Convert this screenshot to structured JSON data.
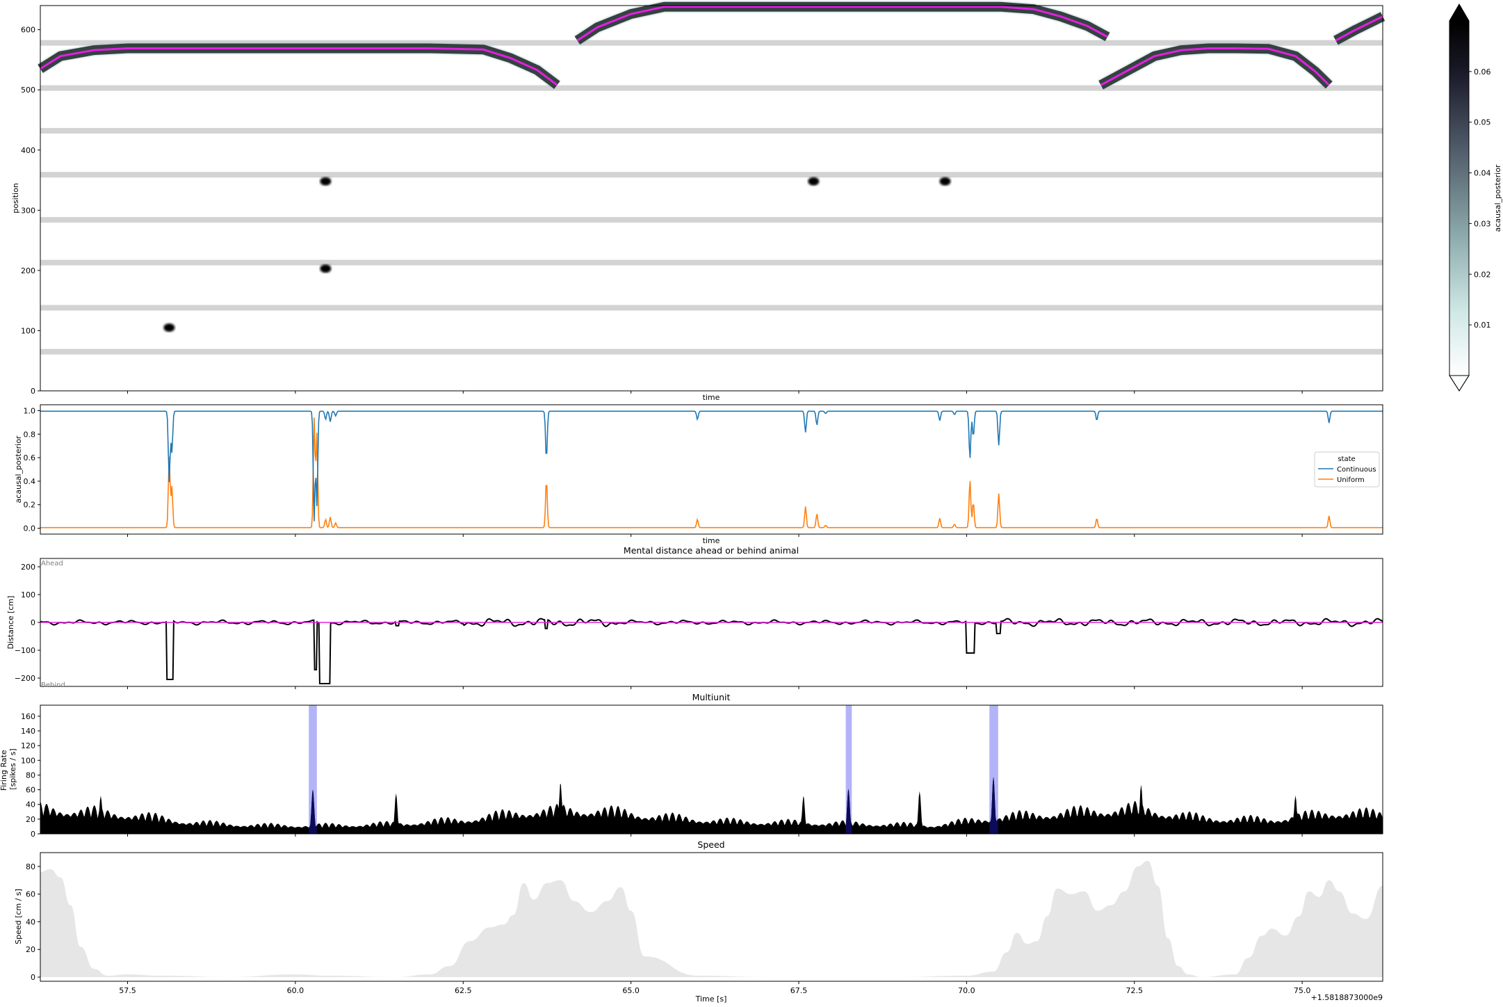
{
  "colors": {
    "continuous": "#1f77b4",
    "uniform": "#ff7f0e",
    "actual_position": "#e020e0",
    "ripple_band": "#b3b3f7",
    "multiunit_fill": "#000000",
    "multiunit_ripple_fill": "#0b0b5a",
    "speed_fill": "#e6e6e6",
    "track_gap": "#d3d3d3"
  },
  "chart_data": [
    {
      "type": "heatmap",
      "name": "posterior",
      "xlabel": "time",
      "ylabel": "position",
      "xlim": [
        56.2,
        76.2
      ],
      "ylim": [
        0,
        640
      ],
      "yticks": [
        "0",
        "100",
        "200",
        "300",
        "400",
        "500",
        "600"
      ],
      "track_gaps": [
        65,
        138,
        213,
        284,
        359,
        432,
        503,
        578
      ],
      "actual_position": {
        "x": [
          56.2,
          56.5,
          57.0,
          57.5,
          58.0,
          59.0,
          60.0,
          61.0,
          62.0,
          62.8,
          63.2,
          63.6,
          63.9
        ],
        "y": [
          535,
          556,
          566,
          569,
          569,
          569,
          569,
          569,
          569,
          567,
          553,
          533,
          508
        ]
      },
      "actual_position_2": {
        "x": [
          64.2,
          64.5,
          65.0,
          65.5,
          66.0,
          67.0,
          68.0,
          69.0,
          70.0,
          70.5,
          71.0,
          71.4,
          71.8,
          72.1
        ],
        "y": [
          582,
          604,
          626,
          638,
          638,
          638,
          638,
          638,
          638,
          638,
          634,
          622,
          606,
          588
        ]
      },
      "actual_position_3": {
        "x": [
          72.0,
          72.4,
          72.8,
          73.2,
          73.6,
          74.0,
          74.5,
          74.9,
          75.2,
          75.4
        ],
        "y": [
          508,
          532,
          556,
          566,
          569,
          569,
          568,
          556,
          530,
          508
        ]
      },
      "actual_position_4": {
        "x": [
          75.5,
          75.8,
          76.2
        ],
        "y": [
          582,
          600,
          622
        ]
      },
      "blobs": [
        {
          "x": 58.12,
          "y": 105
        },
        {
          "x": 60.45,
          "y": 348
        },
        {
          "x": 60.45,
          "y": 203
        },
        {
          "x": 67.72,
          "y": 348
        },
        {
          "x": 69.68,
          "y": 348
        }
      ],
      "colorbar": {
        "label": "acausal_posterior",
        "ticks": [
          "0.01",
          "0.02",
          "0.03",
          "0.04",
          "0.05",
          "0.06"
        ],
        "range": [
          0,
          0.07
        ]
      }
    },
    {
      "type": "line",
      "name": "state_probability",
      "xlabel": "time",
      "ylabel": "acausal_posterior",
      "xlim": [
        56.2,
        76.2
      ],
      "ylim": [
        -0.05,
        1.05
      ],
      "yticks": [
        "0.0",
        "0.2",
        "0.4",
        "0.6",
        "0.8",
        "1.0"
      ],
      "legend": {
        "title": "state",
        "placement": "right"
      },
      "dips": [
        {
          "x": 58.12,
          "depth": 0.6
        },
        {
          "x": 58.16,
          "depth": 0.35
        },
        {
          "x": 60.28,
          "depth": 0.93
        },
        {
          "x": 60.32,
          "depth": 0.8
        },
        {
          "x": 60.45,
          "depth": 0.07
        },
        {
          "x": 60.52,
          "depth": 0.09
        },
        {
          "x": 60.6,
          "depth": 0.04
        },
        {
          "x": 63.74,
          "depth": 0.41
        },
        {
          "x": 65.99,
          "depth": 0.07
        },
        {
          "x": 67.6,
          "depth": 0.18
        },
        {
          "x": 67.77,
          "depth": 0.12
        },
        {
          "x": 67.9,
          "depth": 0.02
        },
        {
          "x": 69.6,
          "depth": 0.08
        },
        {
          "x": 69.82,
          "depth": 0.03
        },
        {
          "x": 70.05,
          "depth": 0.41
        },
        {
          "x": 70.1,
          "depth": 0.22
        },
        {
          "x": 70.48,
          "depth": 0.29
        },
        {
          "x": 71.94,
          "depth": 0.08
        },
        {
          "x": 75.4,
          "depth": 0.1
        }
      ],
      "series": [
        {
          "name": "Continuous"
        },
        {
          "name": "Uniform"
        }
      ]
    },
    {
      "type": "line",
      "name": "mental_distance",
      "title": "Mental distance ahead or behind animal",
      "ylabel": "Distance [cm]",
      "xlim": [
        56.2,
        76.2
      ],
      "ylim": [
        -230,
        230
      ],
      "yticks": [
        "−200",
        "−100",
        "0",
        "100",
        "200"
      ],
      "annotations": {
        "ahead": "Ahead",
        "behind": "Behind"
      },
      "events": [
        {
          "x0": 58.08,
          "x1": 58.18,
          "y": -205
        },
        {
          "x0": 60.28,
          "x1": 60.32,
          "y": -170
        },
        {
          "x0": 60.36,
          "x1": 60.52,
          "y": -220
        },
        {
          "x0": 61.5,
          "x1": 61.55,
          "y": -12
        },
        {
          "x0": 63.72,
          "x1": 63.76,
          "y": -22
        },
        {
          "x0": 70.0,
          "x1": 70.12,
          "y": -110
        },
        {
          "x0": 70.45,
          "x1": 70.5,
          "y": -40
        }
      ]
    },
    {
      "type": "area",
      "name": "multiunit",
      "title": "Multiunit",
      "ylabel": "Firing Rate\n[spikes / s]",
      "xlim": [
        56.2,
        76.2
      ],
      "ylim": [
        0,
        175
      ],
      "yticks": [
        "0",
        "20",
        "40",
        "60",
        "80",
        "100",
        "120",
        "140",
        "160"
      ],
      "ripples": [
        [
          60.2,
          60.32
        ],
        [
          68.2,
          68.29
        ],
        [
          70.34,
          70.47
        ]
      ],
      "peaks": [
        {
          "x": 60.26,
          "y": 60
        },
        {
          "x": 68.24,
          "y": 61
        },
        {
          "x": 70.4,
          "y": 77
        },
        {
          "x": 61.5,
          "y": 55
        },
        {
          "x": 63.95,
          "y": 70
        },
        {
          "x": 67.57,
          "y": 52
        },
        {
          "x": 69.3,
          "y": 58
        },
        {
          "x": 72.6,
          "y": 67
        },
        {
          "x": 57.1,
          "y": 52
        },
        {
          "x": 74.9,
          "y": 52
        }
      ],
      "baseline": [
        {
          "x": 56.2,
          "y": 45
        },
        {
          "x": 57.5,
          "y": 35
        },
        {
          "x": 58.5,
          "y": 20
        },
        {
          "x": 59.5,
          "y": 15
        },
        {
          "x": 60.5,
          "y": 15
        },
        {
          "x": 61.5,
          "y": 18
        },
        {
          "x": 62.5,
          "y": 25
        },
        {
          "x": 63.5,
          "y": 40
        },
        {
          "x": 64.5,
          "y": 42
        },
        {
          "x": 65.5,
          "y": 30
        },
        {
          "x": 66.5,
          "y": 22
        },
        {
          "x": 67.5,
          "y": 20
        },
        {
          "x": 68.5,
          "y": 18
        },
        {
          "x": 69.5,
          "y": 15
        },
        {
          "x": 70.5,
          "y": 30
        },
        {
          "x": 71.5,
          "y": 38
        },
        {
          "x": 72.5,
          "y": 45
        },
        {
          "x": 73.5,
          "y": 28
        },
        {
          "x": 74.5,
          "y": 25
        },
        {
          "x": 75.5,
          "y": 38
        },
        {
          "x": 76.2,
          "y": 35
        }
      ]
    },
    {
      "type": "area",
      "name": "speed",
      "title": "Speed",
      "xlabel": "Time [s]",
      "ylabel": "Speed [cm / s]",
      "xlim": [
        56.2,
        76.2
      ],
      "ylim": [
        -3,
        90
      ],
      "yticks": [
        "0",
        "20",
        "40",
        "60",
        "80"
      ],
      "xticks": [
        "57.5",
        "60.0",
        "62.5",
        "65.0",
        "67.5",
        "70.0",
        "72.5",
        "75.0"
      ],
      "xtick_values": [
        57.5,
        60.0,
        62.5,
        65.0,
        67.5,
        70.0,
        72.5,
        75.0
      ],
      "offset_label": "+1.5818873000e9",
      "x": [
        56.2,
        56.35,
        56.5,
        56.65,
        56.8,
        57.0,
        57.2,
        57.5,
        58.0,
        59.0,
        60.0,
        60.5,
        61.5,
        62.0,
        62.3,
        62.6,
        62.9,
        63.1,
        63.25,
        63.4,
        63.55,
        63.75,
        63.95,
        64.15,
        64.4,
        64.65,
        64.85,
        65.0,
        65.2,
        66.0,
        67.0,
        68.0,
        69.0,
        70.0,
        70.4,
        70.6,
        70.75,
        70.9,
        71.05,
        71.2,
        71.35,
        71.55,
        71.75,
        71.95,
        72.15,
        72.35,
        72.55,
        72.7,
        72.85,
        73.0,
        73.15,
        73.3,
        73.5,
        74.0,
        74.2,
        74.4,
        74.55,
        74.75,
        74.95,
        75.1,
        75.25,
        75.4,
        75.55,
        75.75,
        75.95,
        76.2
      ],
      "y": [
        76,
        78,
        72,
        52,
        22,
        6,
        1,
        2,
        1,
        0,
        2,
        1,
        0,
        2,
        8,
        26,
        36,
        38,
        45,
        68,
        56,
        68,
        70,
        55,
        47,
        55,
        65,
        48,
        15,
        1,
        0,
        0,
        0,
        1,
        4,
        18,
        32,
        24,
        26,
        44,
        64,
        60,
        62,
        48,
        52,
        62,
        80,
        84,
        66,
        28,
        8,
        2,
        0,
        2,
        14,
        30,
        35,
        30,
        44,
        62,
        58,
        70,
        62,
        46,
        42,
        66
      ]
    }
  ]
}
